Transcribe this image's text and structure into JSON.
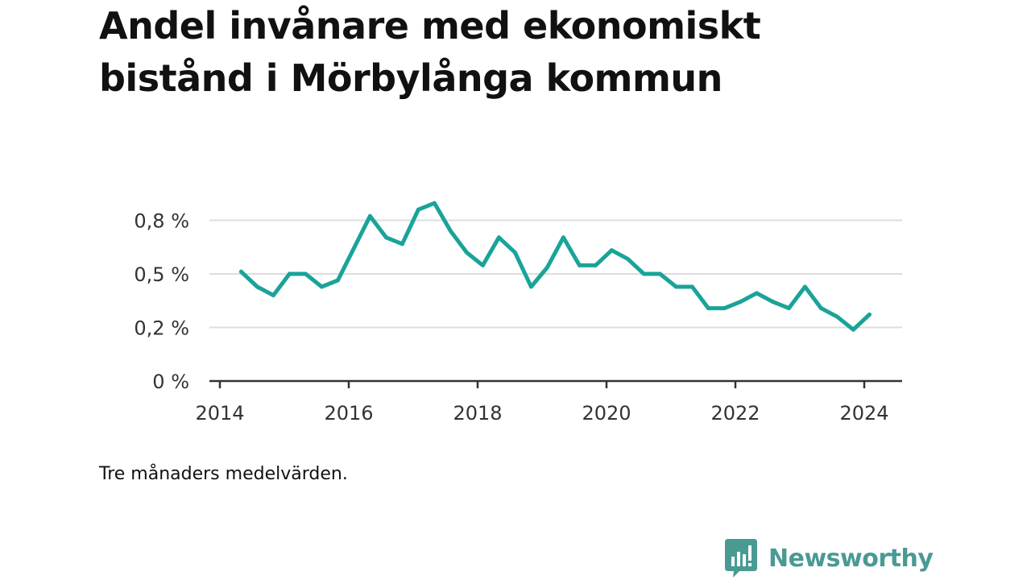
{
  "title": "Andel invånare med ekonomiskt bistånd i Mörbylånga kommun",
  "note": "Tre månaders medelvärden.",
  "brand": {
    "name": "Newsworthy",
    "color": "#4a9a94",
    "icon": "chart-bubble-icon"
  },
  "colors": {
    "line": "#1aa399",
    "grid": "#dddddd",
    "axis": "#333333"
  },
  "chart_data": {
    "type": "line",
    "title": "Andel invånare med ekonomiskt bistånd i Mörbylånga kommun",
    "xlabel": "",
    "ylabel": "",
    "x_ticks": [
      {
        "value": 2014,
        "label": "2014"
      },
      {
        "value": 2016,
        "label": "2016"
      },
      {
        "value": 2018,
        "label": "2018"
      },
      {
        "value": 2020,
        "label": "2020"
      },
      {
        "value": 2022,
        "label": "2022"
      },
      {
        "value": 2024,
        "label": "2024"
      }
    ],
    "y_ticks": [
      {
        "value": 0,
        "label": "0 %"
      },
      {
        "value": 0.25,
        "label": "0,2 %"
      },
      {
        "value": 0.5,
        "label": "0,5 %"
      },
      {
        "value": 0.75,
        "label": "0,8 %"
      }
    ],
    "xlim": [
      2014,
      2024.6
    ],
    "ylim": [
      0,
      0.75
    ],
    "grid": true,
    "series": [
      {
        "name": "",
        "x": [
          2014.33,
          2014.58,
          2014.83,
          2015.08,
          2015.33,
          2015.58,
          2015.83,
          2016.08,
          2016.33,
          2016.58,
          2016.83,
          2017.08,
          2017.33,
          2017.58,
          2017.83,
          2018.08,
          2018.33,
          2018.58,
          2018.83,
          2019.08,
          2019.33,
          2019.58,
          2019.83,
          2020.08,
          2020.33,
          2020.58,
          2020.83,
          2021.08,
          2021.33,
          2021.58,
          2021.83,
          2022.08,
          2022.33,
          2022.58,
          2022.83,
          2023.08,
          2023.33,
          2023.58,
          2023.83,
          2024.08
        ],
        "y": [
          0.51,
          0.44,
          0.4,
          0.5,
          0.5,
          0.44,
          0.47,
          0.62,
          0.77,
          0.67,
          0.64,
          0.8,
          0.83,
          0.7,
          0.6,
          0.54,
          0.67,
          0.6,
          0.44,
          0.53,
          0.67,
          0.54,
          0.54,
          0.61,
          0.57,
          0.5,
          0.5,
          0.44,
          0.44,
          0.34,
          0.34,
          0.37,
          0.41,
          0.37,
          0.34,
          0.44,
          0.34,
          0.3,
          0.24,
          0.31
        ]
      }
    ]
  }
}
